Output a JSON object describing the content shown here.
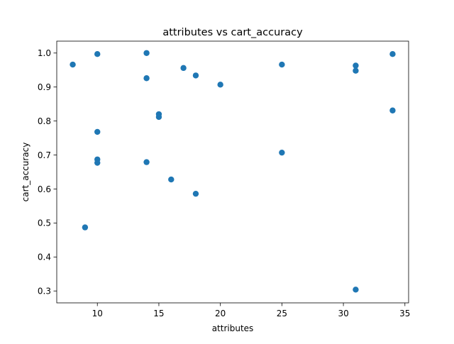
{
  "chart_data": {
    "type": "scatter",
    "title": "attributes vs cart_accuracy",
    "xlabel": "attributes",
    "ylabel": "cart_accuracy",
    "xlim": [
      6.7,
      35.3
    ],
    "ylim": [
      0.265,
      1.035
    ],
    "xticks": [
      10,
      15,
      20,
      25,
      30,
      35
    ],
    "xtick_labels": [
      "10",
      "15",
      "20",
      "25",
      "30",
      "35"
    ],
    "yticks": [
      0.3,
      0.4,
      0.5,
      0.6,
      0.7,
      0.8,
      0.9,
      1.0
    ],
    "ytick_labels": [
      "0.3",
      "0.4",
      "0.5",
      "0.6",
      "0.7",
      "0.8",
      "0.9",
      "1.0"
    ],
    "grid": false,
    "marker_color": "#1f77b4",
    "series": [
      {
        "x": [
          8,
          9,
          10,
          10,
          10,
          10,
          14,
          14,
          14,
          15,
          15,
          16,
          17,
          18,
          18,
          20,
          25,
          25,
          31,
          31,
          31,
          34,
          34
        ],
        "y": [
          0.966,
          0.487,
          0.997,
          0.768,
          0.687,
          0.677,
          1.0,
          0.926,
          0.679,
          0.82,
          0.812,
          0.628,
          0.956,
          0.934,
          0.586,
          0.907,
          0.966,
          0.707,
          0.963,
          0.948,
          0.304,
          0.997,
          0.831
        ]
      }
    ]
  }
}
